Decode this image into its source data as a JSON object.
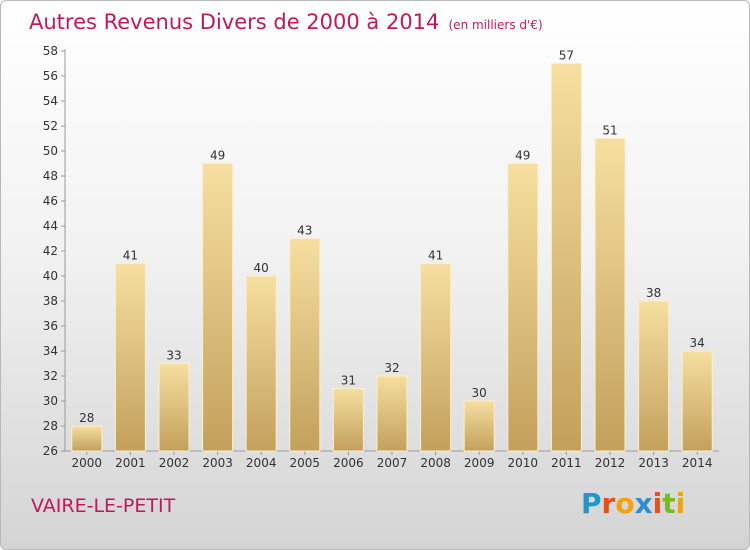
{
  "title": "Autres Revenus Divers de 2000 à 2014",
  "unit_note": "(en milliers d'€)",
  "commune": "VAIRE-LE-PETIT",
  "logo": {
    "letters": [
      "P",
      "r",
      "o",
      "x",
      "i",
      "t",
      "i"
    ],
    "colors": [
      "#2196c9",
      "#e94e1b",
      "#f3a10f",
      "#2e8fd0",
      "#e94e1b",
      "#7cb726",
      "#f3a10f"
    ]
  },
  "chart_data": {
    "type": "bar",
    "categories": [
      "2000",
      "2001",
      "2002",
      "2003",
      "2004",
      "2005",
      "2006",
      "2007",
      "2008",
      "2009",
      "2010",
      "2011",
      "2012",
      "2013",
      "2014"
    ],
    "values": [
      28,
      41,
      33,
      49,
      40,
      43,
      31,
      32,
      41,
      30,
      49,
      57,
      51,
      38,
      34
    ],
    "ylim": [
      26,
      58
    ],
    "ytick_step": 2,
    "grid": false,
    "bar_color_light": "#f6dfa0",
    "bar_color_dark": "#c3a05c"
  }
}
